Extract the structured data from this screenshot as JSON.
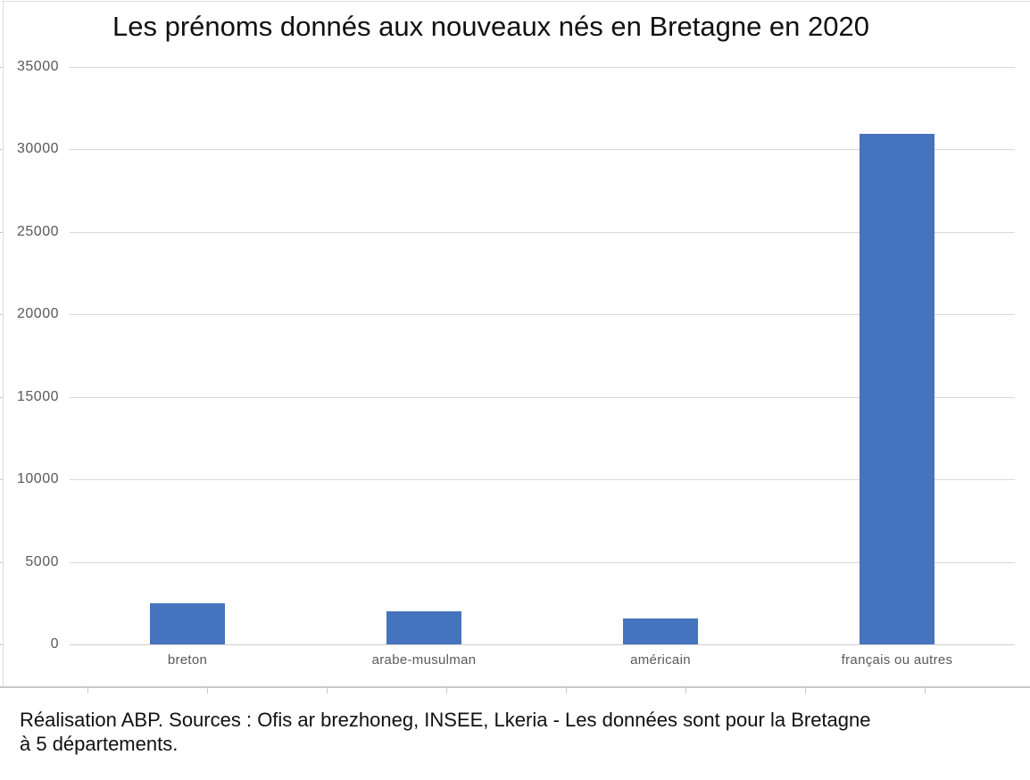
{
  "chart_data": {
    "type": "bar",
    "title": "Les prénoms donnés aux nouveaux nés en Bretagne en 2020",
    "categories": [
      "breton",
      "arabe-musulman",
      "américain",
      "français ou autres"
    ],
    "values": [
      2500,
      2000,
      1550,
      30950
    ],
    "yticks": [
      0,
      5000,
      10000,
      15000,
      20000,
      25000,
      30000,
      35000
    ],
    "ylim": [
      0,
      35000
    ],
    "xlabel": "",
    "ylabel": "",
    "grid": true,
    "legend": false,
    "bar_color": "#4573BE"
  },
  "caption": {
    "lines": [
      "Réalisation ABP. Sources : Ofis ar brezhoneg, INSEE, Lkeria - Les données sont pour la Bretagne",
      "à 5 départements."
    ]
  },
  "colors": {
    "bar": "#4573BE",
    "gridline": "#d9d9d9",
    "axis_label": "#595959",
    "frame": "#dcdcdc"
  }
}
